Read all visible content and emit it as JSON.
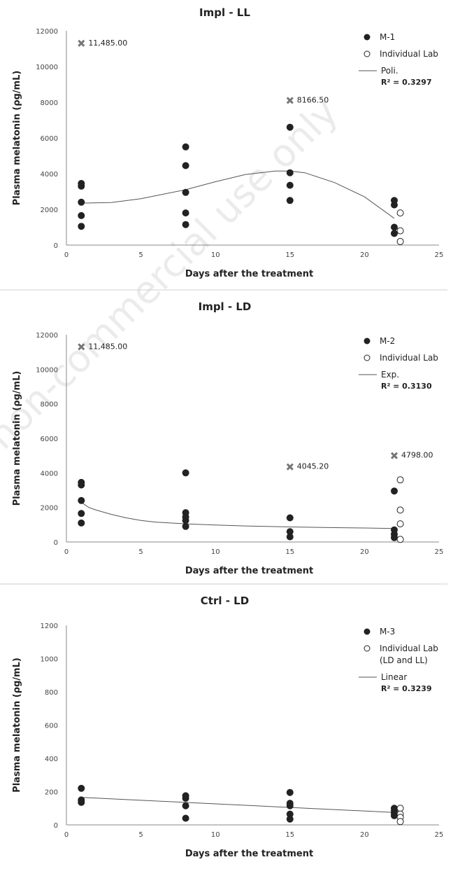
{
  "watermark": "For non-commercial use only",
  "chart_data": [
    {
      "type": "scatter",
      "title": "Impl - LL",
      "xlabel": "Days after the treatment",
      "ylabel": "Plasma melatonin (ρg/mL)",
      "xlim": [
        0,
        25
      ],
      "ylim": [
        0,
        12000
      ],
      "xticks": [
        0,
        5,
        10,
        15,
        20,
        25
      ],
      "yticks": [
        0,
        2000,
        4000,
        6000,
        8000,
        10000,
        12000
      ],
      "grid": false,
      "legend_position": "top-right",
      "series": [
        {
          "name": "M-1",
          "marker": "filled-circle",
          "color": "#222222",
          "x": [
            1,
            1,
            1,
            1,
            1,
            8,
            8,
            8,
            8,
            8,
            15,
            15,
            15,
            15,
            22,
            22,
            22,
            22
          ],
          "y": [
            3450,
            3300,
            2400,
            1650,
            1050,
            5500,
            4450,
            2950,
            1800,
            1150,
            6600,
            4050,
            3350,
            2500,
            2500,
            2250,
            1000,
            650
          ]
        },
        {
          "name": "Individual Lab",
          "marker": "open-circle",
          "color": "#222222",
          "x": [
            22.4,
            22.4,
            22.4
          ],
          "y": [
            1800,
            800,
            200
          ]
        }
      ],
      "trendline": {
        "name": "Poli.",
        "type": "polynomial",
        "r2_label": "R² = 0.3297",
        "x": [
          1,
          3,
          5,
          8,
          10,
          12,
          14,
          15,
          16,
          18,
          20,
          22
        ],
        "y": [
          2350,
          2380,
          2600,
          3100,
          3550,
          3950,
          4150,
          4150,
          4050,
          3500,
          2700,
          1500
        ]
      },
      "annotations": [
        {
          "x": 1,
          "y": 11300,
          "label": "11,485.00"
        },
        {
          "x": 15,
          "y": 8100,
          "label": "8166.50"
        }
      ]
    },
    {
      "type": "scatter",
      "title": "Impl - LD",
      "xlabel": "Days after the treatment",
      "ylabel": "Plasma melatonin (ρg/mL)",
      "xlim": [
        0,
        25
      ],
      "ylim": [
        0,
        12000
      ],
      "xticks": [
        0,
        5,
        10,
        15,
        20,
        25
      ],
      "yticks": [
        0,
        2000,
        4000,
        6000,
        8000,
        10000,
        12000
      ],
      "grid": false,
      "legend_position": "top-right",
      "series": [
        {
          "name": "M-2",
          "marker": "filled-circle",
          "color": "#222222",
          "x": [
            1,
            1,
            1,
            1,
            1,
            8,
            8,
            8,
            8,
            8,
            15,
            15,
            15,
            22,
            22,
            22,
            22
          ],
          "y": [
            3450,
            3300,
            2400,
            1650,
            1100,
            4000,
            1700,
            1450,
            1250,
            900,
            1400,
            600,
            300,
            2950,
            700,
            450,
            250
          ]
        },
        {
          "name": "Individual Lab",
          "marker": "open-circle",
          "color": "#222222",
          "x": [
            22.4,
            22.4,
            22.4,
            22.4
          ],
          "y": [
            3600,
            1850,
            1050,
            150
          ]
        }
      ],
      "trendline": {
        "name": "Exp.",
        "type": "exponential",
        "r2_label": "R² = 0.3130",
        "x": [
          1,
          1.5,
          2,
          3,
          4,
          5,
          6,
          8,
          10,
          12,
          15,
          18,
          20,
          22
        ],
        "y": [
          2300,
          2000,
          1850,
          1600,
          1400,
          1250,
          1150,
          1050,
          980,
          930,
          870,
          830,
          810,
          780
        ]
      },
      "annotations": [
        {
          "x": 1,
          "y": 11300,
          "label": "11,485.00"
        },
        {
          "x": 15,
          "y": 4350,
          "label": "4045.20"
        },
        {
          "x": 22,
          "y": 5000,
          "label": "4798.00"
        }
      ]
    },
    {
      "type": "scatter",
      "title": "Ctrl - LD",
      "xlabel": "Days after the treatment",
      "ylabel": "Plasma melatonin (ρg/mL)",
      "xlim": [
        0,
        25
      ],
      "ylim": [
        0,
        1200
      ],
      "xticks": [
        0,
        5,
        10,
        15,
        20,
        25
      ],
      "yticks": [
        0,
        200,
        400,
        600,
        800,
        1000,
        1200
      ],
      "grid": false,
      "legend_position": "top-right",
      "series": [
        {
          "name": "M-3",
          "marker": "filled-circle",
          "color": "#222222",
          "x": [
            1,
            1,
            1,
            8,
            8,
            8,
            8,
            15,
            15,
            15,
            15,
            15,
            22,
            22,
            22,
            22
          ],
          "y": [
            220,
            150,
            135,
            175,
            160,
            115,
            40,
            195,
            130,
            115,
            65,
            35,
            100,
            85,
            70,
            55
          ]
        },
        {
          "name": "Individual Lab\n(LD and LL)",
          "marker": "open-circle",
          "color": "#222222",
          "x": [
            22.4,
            22.4,
            22.4,
            22.4
          ],
          "y": [
            100,
            65,
            45,
            20
          ]
        }
      ],
      "trendline": {
        "name": "Linear",
        "type": "linear",
        "r2_label": "R² = 0.3239",
        "x": [
          1,
          22
        ],
        "y": [
          165,
          75
        ]
      },
      "annotations": []
    }
  ]
}
